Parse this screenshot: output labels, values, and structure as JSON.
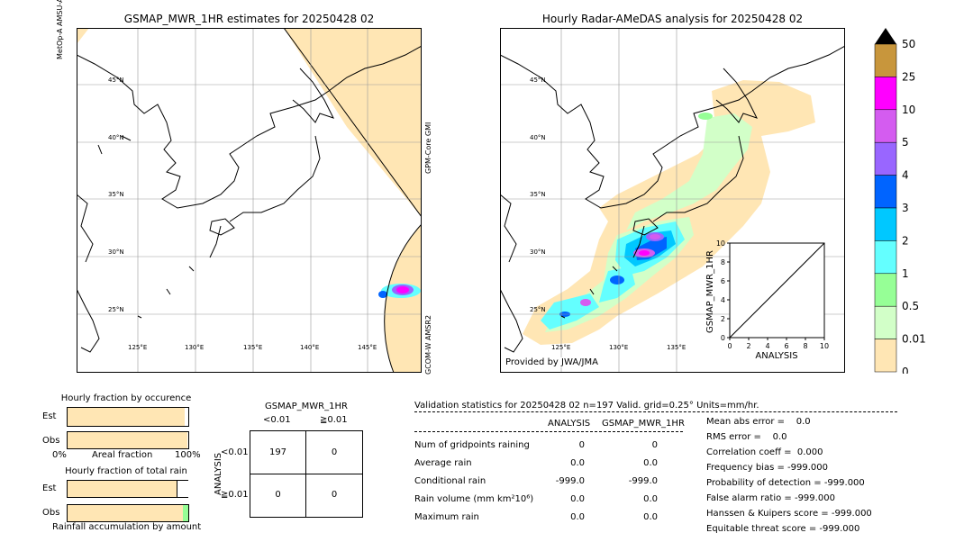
{
  "left_map": {
    "title": "GSMAP_MWR_1HR estimates for 20250428 02",
    "sensor_top": "MetOp-A AMSU-A/MHS",
    "sensor_right1": "GPM-Core GMI",
    "sensor_right2": "GCOM-W AMSR2",
    "lat_labels": [
      "45°N",
      "40°N",
      "35°N",
      "30°N",
      "25°N"
    ],
    "lon_labels": [
      "125°E",
      "130°E",
      "135°E",
      "140°E",
      "145°E"
    ]
  },
  "right_map": {
    "title": "Hourly Radar-AMeDAS analysis for 20250428 02",
    "credit": "Provided by JWA/JMA",
    "lat_labels": [
      "45°N",
      "40°N",
      "35°N",
      "30°N",
      "25°N"
    ],
    "lon_labels": [
      "125°E",
      "130°E",
      "135°E"
    ]
  },
  "colorbar": {
    "labels": [
      "50",
      "25",
      "10",
      "5",
      "4",
      "3",
      "2",
      "1",
      "0.5",
      "0.01",
      "0"
    ],
    "colors": [
      "#c8963c",
      "#ff00ff",
      "#d45cf0",
      "#9966ff",
      "#0064ff",
      "#00c8ff",
      "#64ffff",
      "#96ff96",
      "#d2ffc8",
      "#ffe6b4"
    ]
  },
  "chart_data": [
    {
      "type": "scatter",
      "title": "",
      "xlabel": "ANALYSIS",
      "ylabel": "GSMAP_MWR_1HR",
      "xlim": [
        0,
        10
      ],
      "ylim": [
        0,
        10
      ],
      "x_ticks": [
        "0",
        "2",
        "4",
        "6",
        "8",
        "10"
      ],
      "y_ticks": [
        "0",
        "2",
        "4",
        "6",
        "8",
        "10"
      ],
      "points": [],
      "reference_line": [
        [
          0,
          0
        ],
        [
          10,
          10
        ]
      ]
    },
    {
      "type": "bar",
      "title": "Hourly fraction by occurence",
      "categories": [
        "Est",
        "Obs"
      ],
      "values": [
        0.97,
        0.99
      ],
      "xlabel": "Areal fraction",
      "x_ticks": [
        "0%",
        "100%"
      ]
    },
    {
      "type": "bar",
      "title": "Hourly fraction of total rain",
      "categories": [
        "Est",
        "Obs"
      ],
      "values": [
        0.9,
        0.96
      ],
      "xlabel": "Rainfall accumulation by amount"
    }
  ],
  "contingency": {
    "title": "GSMAP_MWR_1HR",
    "col_labels": [
      "<0.01",
      "≧0.01"
    ],
    "row_title": "ANALYSIS",
    "row_labels": [
      "<0.01",
      "≧0.01"
    ],
    "cells": [
      [
        "197",
        "0"
      ],
      [
        "0",
        "0"
      ]
    ]
  },
  "validation": {
    "header": "Validation statistics for 20250428 02  n=197 Valid. grid=0.25° Units=mm/hr.",
    "col_analysis": "ANALYSIS",
    "col_gsmap": "GSMAP_MWR_1HR",
    "row_labels": [
      "Num of gridpoints raining",
      "Average rain",
      "Conditional rain",
      "Rain volume (mm km²10⁶)",
      "Maximum rain"
    ],
    "analysis_vals": [
      "0",
      "0.0",
      "-999.0",
      "0.0",
      "0.0"
    ],
    "gsmap_vals": [
      "0",
      "0.0",
      "-999.0",
      "0.0",
      "0.0"
    ],
    "scores": [
      "Mean abs error =    0.0",
      "RMS error =    0.0",
      "Correlation coeff =  0.000",
      "Frequency bias = -999.000",
      "Probability of detection = -999.000",
      "False alarm ratio = -999.000",
      "Hanssen & Kuipers score = -999.000",
      "Equitable threat score = -999.000"
    ]
  }
}
